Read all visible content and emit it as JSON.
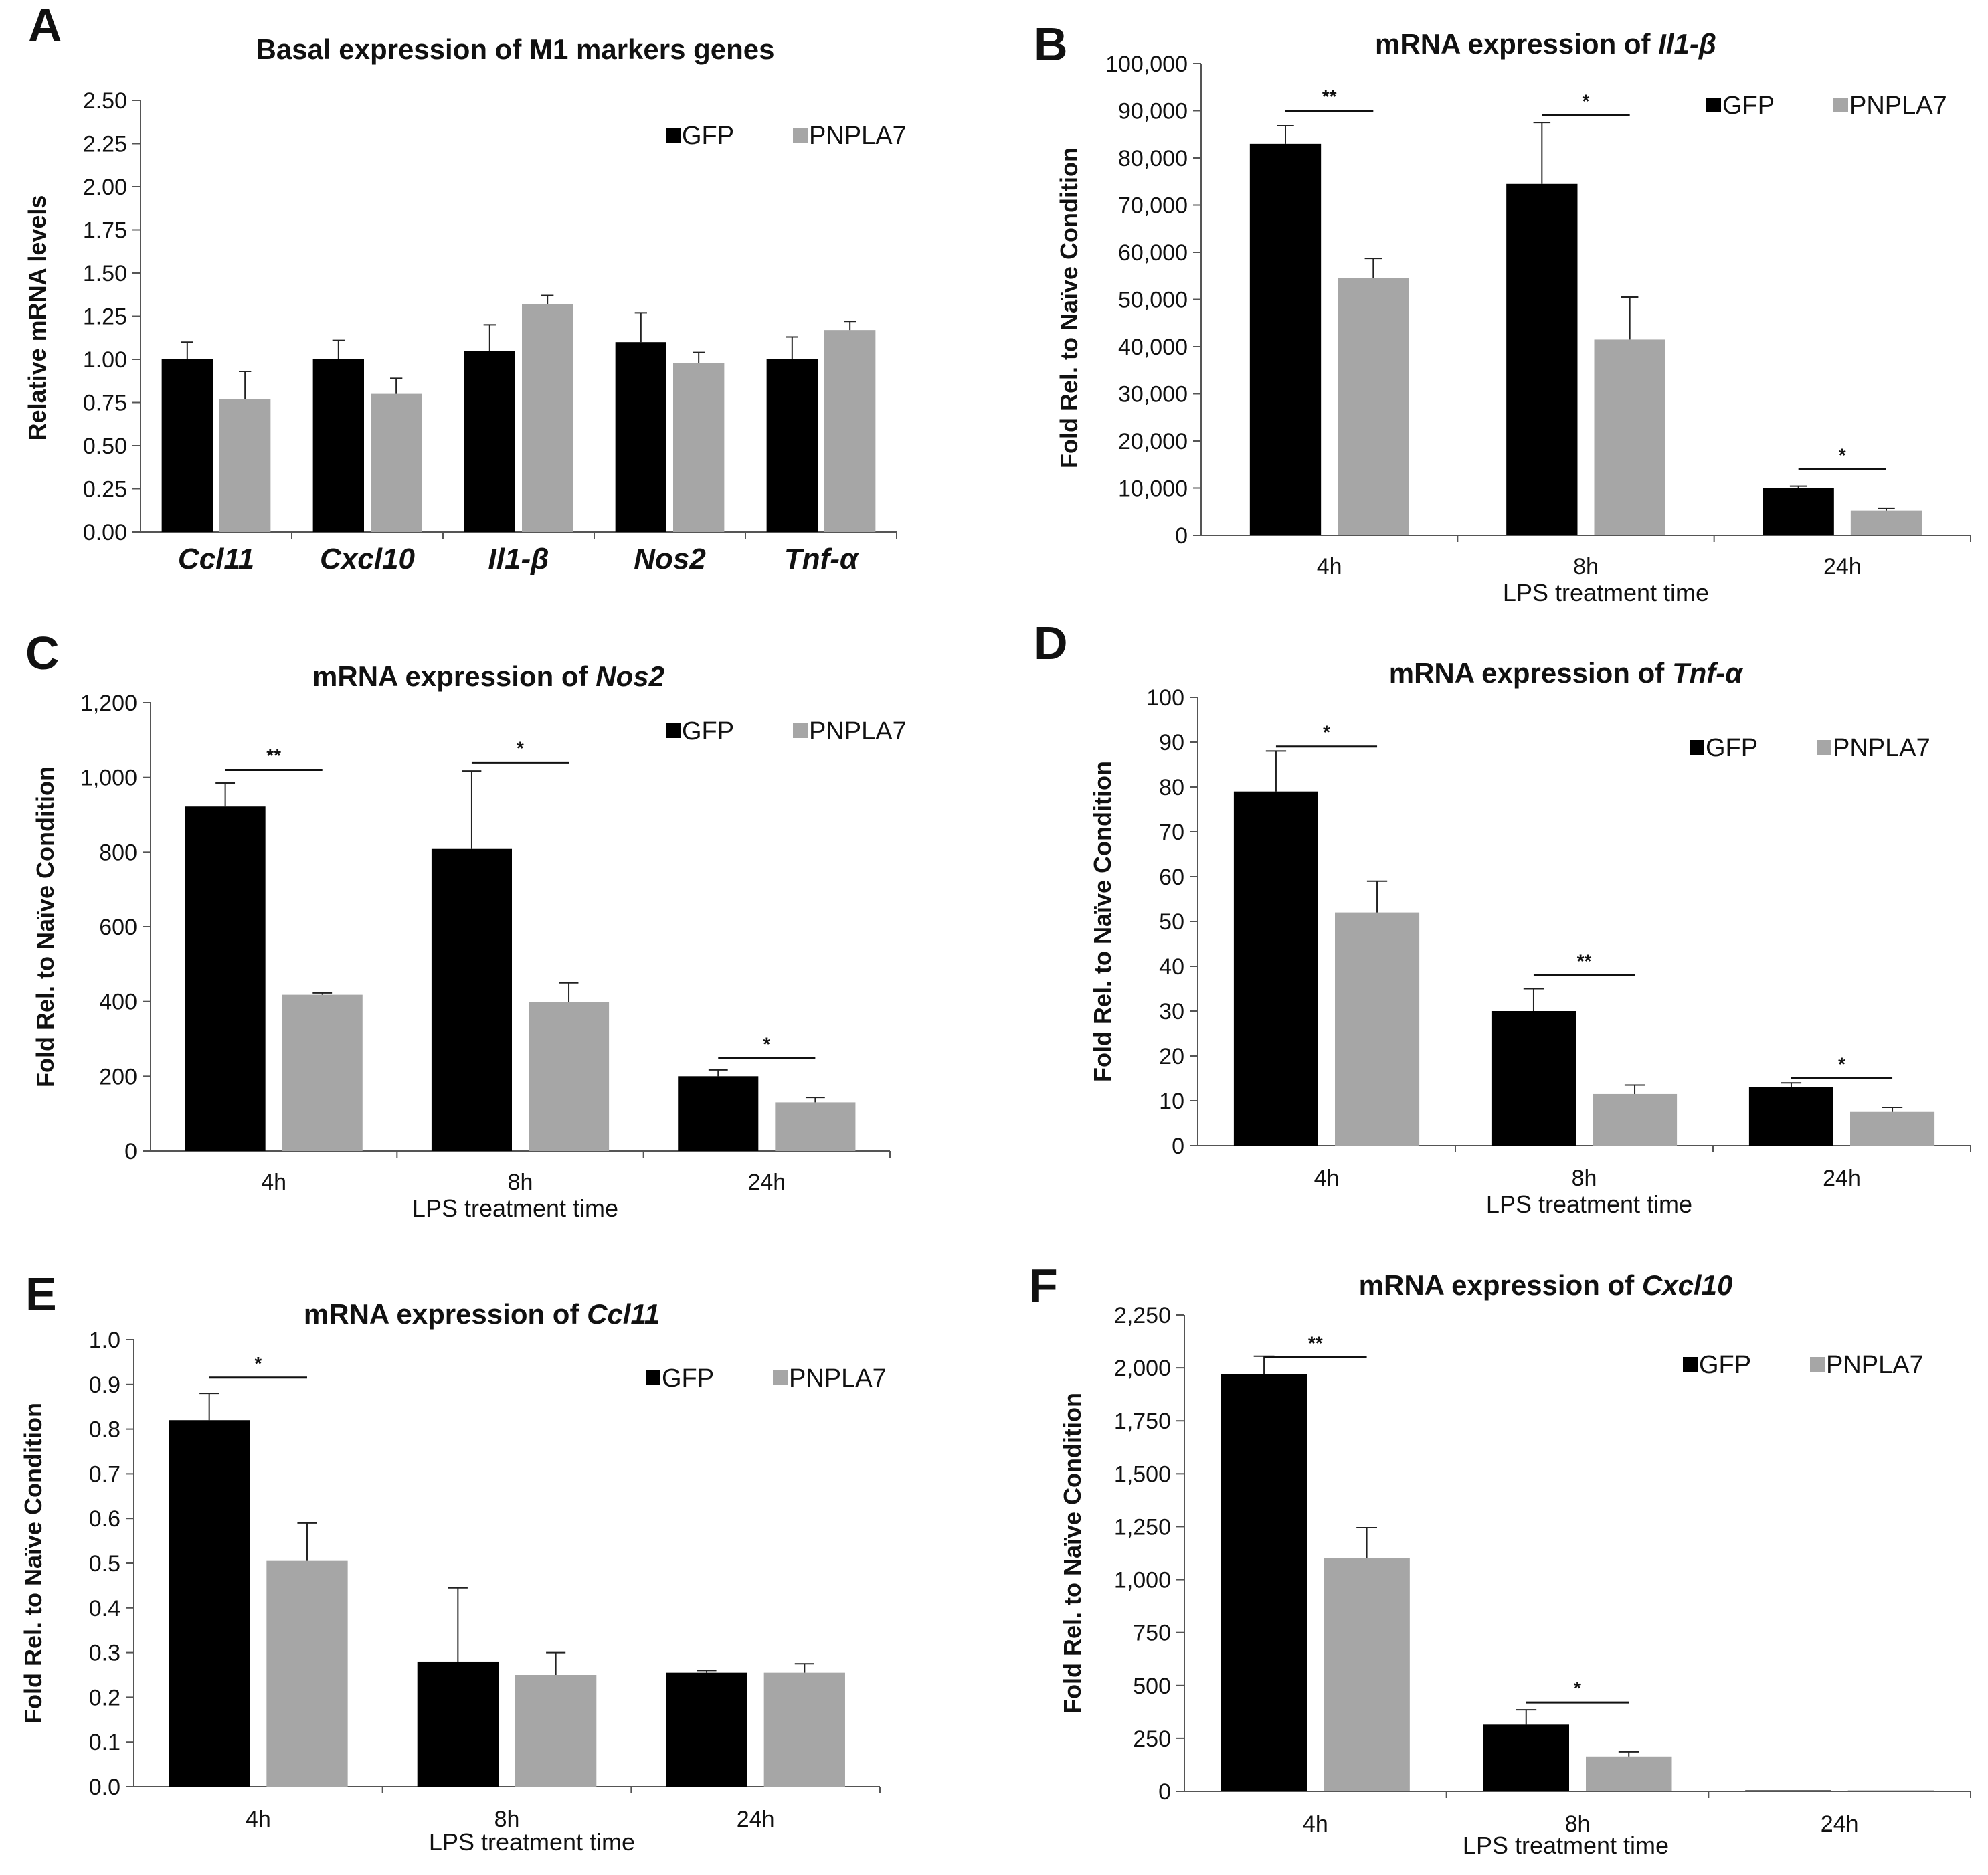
{
  "chart_data": [
    {
      "panel": "A",
      "type": "bar",
      "title": "Basal expression of M1 markers genes",
      "title_italic": "",
      "ylabel": "Relative mRNA levels",
      "xlabel": "",
      "ylim": [
        0,
        2.5
      ],
      "yticks": [
        0,
        0.25,
        0.5,
        0.75,
        1.0,
        1.25,
        1.5,
        1.75,
        2.0,
        2.25,
        2.5
      ],
      "ytick_labels": [
        "0.00",
        "0.25",
        "0.50",
        "0.75",
        "1.00",
        "1.25",
        "1.50",
        "1.75",
        "2.00",
        "2.25",
        "2.50"
      ],
      "categories": [
        "Ccl11",
        "Cxcl10",
        "Il1-β",
        "Nos2",
        "Tnf-α"
      ],
      "categories_italic": true,
      "series": [
        {
          "name": "GFP",
          "color": "#000000",
          "values": [
            1.0,
            1.0,
            1.05,
            1.1,
            1.0
          ],
          "errors": [
            0.1,
            0.11,
            0.15,
            0.17,
            0.13
          ]
        },
        {
          "name": "PNPLA7",
          "color": "#a6a6a6",
          "values": [
            0.77,
            0.8,
            1.32,
            0.98,
            1.17
          ],
          "errors": [
            0.16,
            0.09,
            0.05,
            0.06,
            0.05
          ]
        }
      ],
      "significance": [],
      "legend": "top-right"
    },
    {
      "panel": "B",
      "type": "bar",
      "title": "mRNA expression of ",
      "title_italic": "Il1-β",
      "ylabel": "Fold Rel. to Naïve Condition",
      "xlabel": "LPS treatment time",
      "ylim": [
        0,
        100000
      ],
      "yticks": [
        0,
        10000,
        20000,
        30000,
        40000,
        50000,
        60000,
        70000,
        80000,
        90000,
        100000
      ],
      "ytick_labels": [
        "0",
        "10,000",
        "20,000",
        "30,000",
        "40,000",
        "50,000",
        "60,000",
        "70,000",
        "80,000",
        "90,000",
        "100,000"
      ],
      "categories": [
        "4h",
        "8h",
        "24h"
      ],
      "categories_italic": false,
      "series": [
        {
          "name": "GFP",
          "color": "#000000",
          "values": [
            83000,
            74500,
            10000
          ],
          "errors": [
            3800,
            13000,
            400
          ]
        },
        {
          "name": "PNPLA7",
          "color": "#a6a6a6",
          "values": [
            54500,
            41500,
            5300
          ],
          "errors": [
            4200,
            9000,
            400
          ]
        }
      ],
      "significance": [
        {
          "category": 0,
          "label": "**",
          "y": 90000
        },
        {
          "category": 1,
          "label": "*",
          "y": 89000
        },
        {
          "category": 2,
          "label": "*",
          "y": 14000
        }
      ],
      "legend": "top-right"
    },
    {
      "panel": "C",
      "type": "bar",
      "title": "mRNA expression of ",
      "title_italic": "Nos2",
      "ylabel": "Fold Rel. to Naïve Condition",
      "xlabel": "LPS treatment time",
      "ylim": [
        0,
        1200
      ],
      "yticks": [
        0,
        200,
        400,
        600,
        800,
        1000,
        1200
      ],
      "ytick_labels": [
        "0",
        "200",
        "400",
        "600",
        "800",
        "1,000",
        "1,200"
      ],
      "categories": [
        "4h",
        "8h",
        "24h"
      ],
      "categories_italic": false,
      "series": [
        {
          "name": "GFP",
          "color": "#000000",
          "values": [
            922,
            810,
            200
          ],
          "errors": [
            63,
            207,
            17
          ]
        },
        {
          "name": "PNPLA7",
          "color": "#a6a6a6",
          "values": [
            418,
            398,
            130
          ],
          "errors": [
            5,
            52,
            13
          ]
        }
      ],
      "significance": [
        {
          "category": 0,
          "label": "**",
          "y": 1020
        },
        {
          "category": 1,
          "label": "*",
          "y": 1040
        },
        {
          "category": 2,
          "label": "*",
          "y": 248
        }
      ],
      "legend": "top-right"
    },
    {
      "panel": "D",
      "type": "bar",
      "title": "mRNA expression of ",
      "title_italic": "Tnf-α",
      "ylabel": "Fold Rel. to Naïve Condition",
      "xlabel": "LPS treatment time",
      "ylim": [
        0,
        100
      ],
      "yticks": [
        0,
        10,
        20,
        30,
        40,
        50,
        60,
        70,
        80,
        90,
        100
      ],
      "ytick_labels": [
        "0",
        "10",
        "20",
        "30",
        "40",
        "50",
        "60",
        "70",
        "80",
        "90",
        "100"
      ],
      "categories": [
        "4h",
        "8h",
        "24h"
      ],
      "categories_italic": false,
      "series": [
        {
          "name": "GFP",
          "color": "#000000",
          "values": [
            79,
            30,
            13
          ],
          "errors": [
            9,
            5,
            1
          ]
        },
        {
          "name": "PNPLA7",
          "color": "#a6a6a6",
          "values": [
            52,
            11.5,
            7.5
          ],
          "errors": [
            7,
            2,
            1
          ]
        }
      ],
      "significance": [
        {
          "category": 0,
          "label": "*",
          "y": 89
        },
        {
          "category": 1,
          "label": "**",
          "y": 38
        },
        {
          "category": 2,
          "label": "*",
          "y": 15
        }
      ],
      "legend": "top-right"
    },
    {
      "panel": "E",
      "type": "bar",
      "title": "mRNA expression of ",
      "title_italic": "Ccl11",
      "ylabel": "Fold Rel. to Naïve Condition",
      "xlabel": "LPS treatment time",
      "ylim": [
        0,
        1.0
      ],
      "yticks": [
        0,
        0.1,
        0.2,
        0.3,
        0.4,
        0.5,
        0.6,
        0.7,
        0.8,
        0.9,
        1.0
      ],
      "ytick_labels": [
        "0.0",
        "0.1",
        "0.2",
        "0.3",
        "0.4",
        "0.5",
        "0.6",
        "0.7",
        "0.8",
        "0.9",
        "1.0"
      ],
      "categories": [
        "4h",
        "8h",
        "24h"
      ],
      "categories_italic": false,
      "series": [
        {
          "name": "GFP",
          "color": "#000000",
          "values": [
            0.82,
            0.28,
            0.255
          ],
          "errors": [
            0.06,
            0.165,
            0.005
          ]
        },
        {
          "name": "PNPLA7",
          "color": "#a6a6a6",
          "values": [
            0.505,
            0.25,
            0.255
          ],
          "errors": [
            0.085,
            0.05,
            0.02
          ]
        }
      ],
      "significance": [
        {
          "category": 0,
          "label": "*",
          "y": 0.915
        }
      ],
      "legend": "top-right"
    },
    {
      "panel": "F",
      "type": "bar",
      "title": "mRNA expression of ",
      "title_italic": "Cxcl10",
      "ylabel": "Fold Rel. to Naïve Condition",
      "xlabel": "LPS treatment time",
      "ylim": [
        0,
        2250
      ],
      "yticks": [
        0,
        250,
        500,
        750,
        1000,
        1250,
        1500,
        1750,
        2000,
        2250
      ],
      "ytick_labels": [
        "0",
        "250",
        "500",
        "750",
        "1,000",
        "1,250",
        "1,500",
        "1,750",
        "2,000",
        "2,250"
      ],
      "categories": [
        "4h",
        "8h",
        "24h"
      ],
      "categories_italic": false,
      "series": [
        {
          "name": "GFP",
          "color": "#000000",
          "values": [
            1970,
            315,
            5
          ],
          "errors": [
            85,
            70,
            0
          ]
        },
        {
          "name": "PNPLA7",
          "color": "#a6a6a6",
          "values": [
            1100,
            165,
            5
          ],
          "errors": [
            145,
            22,
            0
          ]
        }
      ],
      "significance": [
        {
          "category": 0,
          "label": "**",
          "y": 2050
        },
        {
          "category": 1,
          "label": "*",
          "y": 420
        }
      ],
      "legend": "top-right"
    }
  ]
}
